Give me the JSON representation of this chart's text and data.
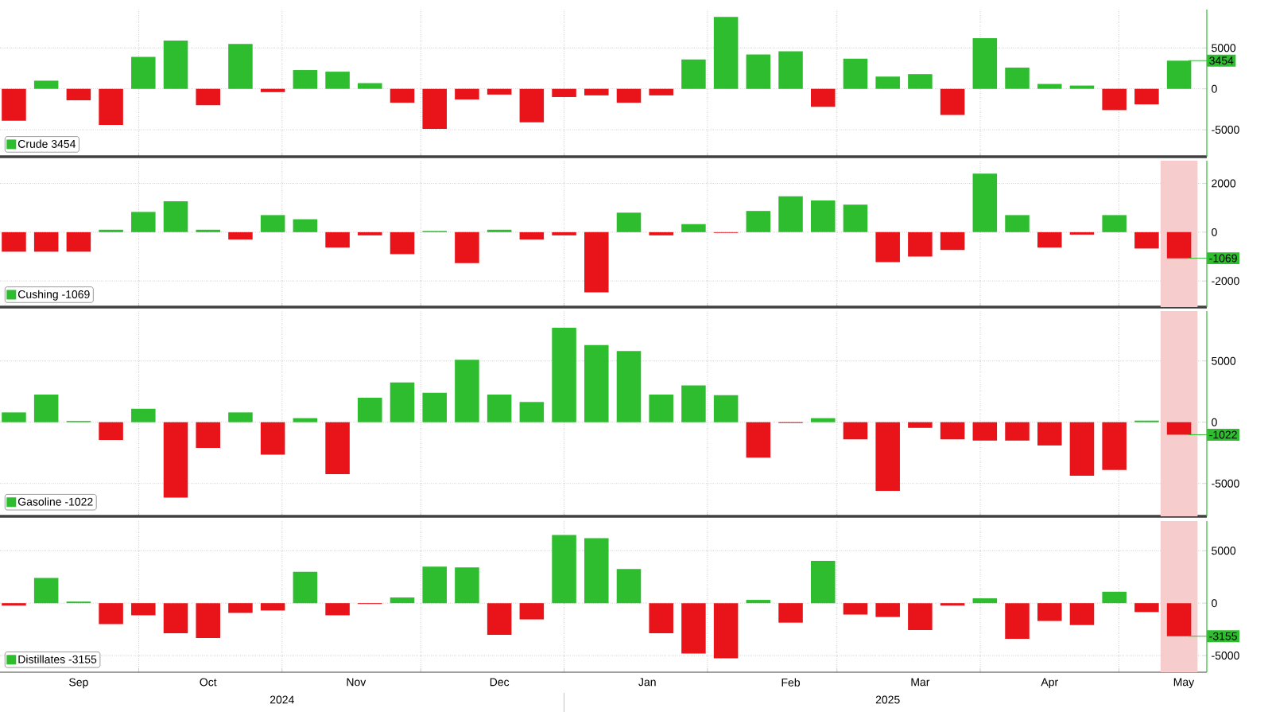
{
  "chart_data": [
    {
      "type": "bar",
      "x": [
        "2024-09-04",
        "2024-09-11",
        "2024-09-18",
        "2024-09-25",
        "2024-10-02",
        "2024-10-09",
        "2024-10-16",
        "2024-10-23",
        "2024-10-30",
        "2024-11-06",
        "2024-11-13",
        "2024-11-20",
        "2024-11-27",
        "2024-12-04",
        "2024-12-11",
        "2024-12-18",
        "2024-12-25",
        "2025-01-01",
        "2025-01-08",
        "2025-01-15",
        "2025-01-22",
        "2025-01-29",
        "2025-02-05",
        "2025-02-12",
        "2025-02-19",
        "2025-02-26",
        "2025-03-05",
        "2025-03-12",
        "2025-03-19",
        "2025-03-26",
        "2025-04-02",
        "2025-04-09",
        "2025-04-16",
        "2025-04-23",
        "2025-04-30",
        "2025-05-07",
        "2025-05-14"
      ],
      "xlim": [
        "2024-09-01",
        "2025-05-20"
      ],
      "xticks": [
        {
          "value": "2024-10-01",
          "label": null
        },
        {
          "value": "2024-11-01",
          "label": null
        },
        {
          "value": "2024-12-01",
          "label": null
        },
        {
          "value": "2025-01-01",
          "label": null
        },
        {
          "value": "2025-02-01",
          "label": null
        },
        {
          "value": "2025-03-01",
          "label": null
        },
        {
          "value": "2025-04-01",
          "label": null
        },
        {
          "value": "2025-05-01",
          "label": null
        }
      ],
      "ylim": [
        -8300,
        9700
      ],
      "yticks": [
        -5000,
        0,
        5000
      ],
      "grid": true,
      "legend": "bottom left",
      "tick_labels": "y",
      "series": [
        {
          "name": "Crude 3454",
          "color": "#2ebd2e",
          "colors": [
            "#e8141a",
            "#2ebd2e",
            "#e8141a",
            "#e8141a",
            "#2ebd2e",
            "#2ebd2e",
            "#e8141a",
            "#2ebd2e",
            "#e8141a",
            "#2ebd2e",
            "#2ebd2e",
            "#2ebd2e",
            "#e8141a",
            "#e8141a",
            "#e8141a",
            "#e8141a",
            "#e8141a",
            "#e8141a",
            "#e8141a",
            "#e8141a",
            "#e8141a",
            "#2ebd2e",
            "#2ebd2e",
            "#2ebd2e",
            "#2ebd2e",
            "#e8141a",
            "#2ebd2e",
            "#2ebd2e",
            "#2ebd2e",
            "#e8141a",
            "#2ebd2e",
            "#2ebd2e",
            "#2ebd2e",
            "#2ebd2e",
            "#e8141a",
            "#e8141a",
            "#2ebd2e"
          ],
          "values": [
            -3900,
            1000,
            -1400,
            -4400,
            3900,
            5900,
            -2000,
            5500,
            -400,
            2300,
            2100,
            700,
            -1700,
            -4900,
            -1300,
            -700,
            -4100,
            -1000,
            -800,
            -1700,
            -800,
            3600,
            8800,
            4200,
            4600,
            -2200,
            3700,
            1500,
            1800,
            -3200,
            6200,
            2600,
            600,
            400,
            -2600,
            -1900,
            3454
          ]
        }
      ],
      "annotations": [
        {
          "text": "3454",
          "x": "2025-05-14",
          "y": 3454
        }
      ]
    },
    {
      "type": "bar",
      "x": [
        "2024-09-04",
        "2024-09-11",
        "2024-09-18",
        "2024-09-25",
        "2024-10-02",
        "2024-10-09",
        "2024-10-16",
        "2024-10-23",
        "2024-10-30",
        "2024-11-06",
        "2024-11-13",
        "2024-11-20",
        "2024-11-27",
        "2024-12-04",
        "2024-12-11",
        "2024-12-18",
        "2024-12-25",
        "2025-01-01",
        "2025-01-08",
        "2025-01-15",
        "2025-01-22",
        "2025-01-29",
        "2025-02-05",
        "2025-02-12",
        "2025-02-19",
        "2025-02-26",
        "2025-03-05",
        "2025-03-12",
        "2025-03-19",
        "2025-03-26",
        "2025-04-02",
        "2025-04-09",
        "2025-04-16",
        "2025-04-23",
        "2025-04-30",
        "2025-05-07",
        "2025-05-14"
      ],
      "xlim": [
        "2024-09-01",
        "2025-05-20"
      ],
      "xticks": [
        {
          "value": "2024-10-01",
          "label": null
        },
        {
          "value": "2024-11-01",
          "label": null
        },
        {
          "value": "2024-12-01",
          "label": null
        },
        {
          "value": "2025-01-01",
          "label": null
        },
        {
          "value": "2025-02-01",
          "label": null
        },
        {
          "value": "2025-03-01",
          "label": null
        },
        {
          "value": "2025-04-01",
          "label": null
        },
        {
          "value": "2025-05-01",
          "label": null
        }
      ],
      "ylim": [
        -3070,
        2930
      ],
      "yticks": [
        -2000,
        0,
        2000
      ],
      "grid": true,
      "legend": "bottom left",
      "tick_labels": "y",
      "bands": [
        {
          "axis": "x",
          "from": "2025-05-10",
          "to": "2025-05-18",
          "color": "#f6cccc"
        }
      ],
      "series": [
        {
          "name": "Cushing -1069",
          "color": "#2ebd2e",
          "colors": [
            "#e8141a",
            "#e8141a",
            "#e8141a",
            "#2ebd2e",
            "#2ebd2e",
            "#2ebd2e",
            "#2ebd2e",
            "#e8141a",
            "#2ebd2e",
            "#2ebd2e",
            "#e8141a",
            "#e8141a",
            "#e8141a",
            "#2ebd2e",
            "#e8141a",
            "#2ebd2e",
            "#e8141a",
            "#e8141a",
            "#e8141a",
            "#2ebd2e",
            "#e8141a",
            "#2ebd2e",
            "#e8141a",
            "#2ebd2e",
            "#2ebd2e",
            "#2ebd2e",
            "#2ebd2e",
            "#e8141a",
            "#e8141a",
            "#e8141a",
            "#2ebd2e",
            "#2ebd2e",
            "#e8141a",
            "#e8141a",
            "#2ebd2e",
            "#e8141a",
            "#e8141a"
          ],
          "values": [
            -800,
            -800,
            -800,
            100,
            830,
            1270,
            100,
            -300,
            700,
            530,
            -630,
            -130,
            -900,
            50,
            -1270,
            100,
            -300,
            -130,
            -2470,
            800,
            -130,
            330,
            -30,
            870,
            1470,
            1300,
            1130,
            -1230,
            -1000,
            -730,
            2400,
            700,
            -630,
            -100,
            700,
            -670,
            -1069
          ]
        }
      ],
      "annotations": [
        {
          "text": "-1069",
          "x": "2025-05-14",
          "y": -1069
        }
      ]
    },
    {
      "type": "bar",
      "x": [
        "2024-09-04",
        "2024-09-11",
        "2024-09-18",
        "2024-09-25",
        "2024-10-02",
        "2024-10-09",
        "2024-10-16",
        "2024-10-23",
        "2024-10-30",
        "2024-11-06",
        "2024-11-13",
        "2024-11-20",
        "2024-11-27",
        "2024-12-04",
        "2024-12-11",
        "2024-12-18",
        "2024-12-25",
        "2025-01-01",
        "2025-01-08",
        "2025-01-15",
        "2025-01-22",
        "2025-01-29",
        "2025-02-05",
        "2025-02-12",
        "2025-02-19",
        "2025-02-26",
        "2025-03-05",
        "2025-03-12",
        "2025-03-19",
        "2025-03-26",
        "2025-04-02",
        "2025-04-09",
        "2025-04-16",
        "2025-04-23",
        "2025-04-30",
        "2025-05-07",
        "2025-05-14"
      ],
      "xlim": [
        "2024-09-01",
        "2025-05-20"
      ],
      "xticks": [
        {
          "value": "2024-10-01",
          "label": null
        },
        {
          "value": "2024-11-01",
          "label": null
        },
        {
          "value": "2024-12-01",
          "label": null
        },
        {
          "value": "2025-01-01",
          "label": null
        },
        {
          "value": "2025-02-01",
          "label": null
        },
        {
          "value": "2025-03-01",
          "label": null
        },
        {
          "value": "2025-04-01",
          "label": null
        },
        {
          "value": "2025-05-01",
          "label": null
        }
      ],
      "ylim": [
        -7680,
        9070
      ],
      "yticks": [
        -5000,
        0,
        5000
      ],
      "grid": true,
      "legend": "bottom left",
      "tick_labels": "y",
      "bands": [
        {
          "axis": "x",
          "from": "2025-05-10",
          "to": "2025-05-18",
          "color": "#f6cccc"
        }
      ],
      "series": [
        {
          "name": "Gasoline -1022",
          "color": "#2ebd2e",
          "colors": [
            "#2ebd2e",
            "#2ebd2e",
            "#2ebd2e",
            "#e8141a",
            "#2ebd2e",
            "#e8141a",
            "#e8141a",
            "#2ebd2e",
            "#e8141a",
            "#2ebd2e",
            "#e8141a",
            "#2ebd2e",
            "#2ebd2e",
            "#2ebd2e",
            "#2ebd2e",
            "#2ebd2e",
            "#2ebd2e",
            "#2ebd2e",
            "#2ebd2e",
            "#2ebd2e",
            "#2ebd2e",
            "#2ebd2e",
            "#2ebd2e",
            "#e8141a",
            "#e8141a",
            "#2ebd2e",
            "#e8141a",
            "#e8141a",
            "#e8141a",
            "#e8141a",
            "#e8141a",
            "#e8141a",
            "#e8141a",
            "#e8141a",
            "#e8141a",
            "#2ebd2e",
            "#e8141a"
          ],
          "values": [
            800,
            2250,
            100,
            -1450,
            1100,
            -6150,
            -2100,
            800,
            -2650,
            330,
            -4240,
            2000,
            3250,
            2400,
            5100,
            2250,
            1650,
            7700,
            6300,
            5800,
            2250,
            3000,
            2200,
            -2900,
            -70,
            330,
            -1400,
            -5600,
            -460,
            -1400,
            -1500,
            -1500,
            -1900,
            -4370,
            -3900,
            130,
            -1022
          ]
        }
      ],
      "annotations": [
        {
          "text": "-1022",
          "x": "2025-05-14",
          "y": -1022
        }
      ]
    },
    {
      "type": "bar",
      "x": [
        "2024-09-04",
        "2024-09-11",
        "2024-09-18",
        "2024-09-25",
        "2024-10-02",
        "2024-10-09",
        "2024-10-16",
        "2024-10-23",
        "2024-10-30",
        "2024-11-06",
        "2024-11-13",
        "2024-11-20",
        "2024-11-27",
        "2024-12-04",
        "2024-12-11",
        "2024-12-18",
        "2024-12-25",
        "2025-01-01",
        "2025-01-08",
        "2025-01-15",
        "2025-01-22",
        "2025-01-29",
        "2025-02-05",
        "2025-02-12",
        "2025-02-19",
        "2025-02-26",
        "2025-03-05",
        "2025-03-12",
        "2025-03-19",
        "2025-03-26",
        "2025-04-02",
        "2025-04-09",
        "2025-04-16",
        "2025-04-23",
        "2025-04-30",
        "2025-05-07",
        "2025-05-14"
      ],
      "xlim": [
        "2024-09-01",
        "2025-05-20"
      ],
      "xticks": [
        {
          "value": "2024-09-18",
          "label": "Sep"
        },
        {
          "value": "2024-10-01",
          "label": null
        },
        {
          "value": "2024-10-16",
          "label": "Oct"
        },
        {
          "value": "2024-11-01",
          "label": null
        },
        {
          "value": "2024-11-17",
          "label": "Nov"
        },
        {
          "value": "2024-12-01",
          "label": null
        },
        {
          "value": "2024-12-18",
          "label": "Dec"
        },
        {
          "value": "2025-01-01",
          "label": null
        },
        {
          "value": "2025-01-19",
          "label": "Jan"
        },
        {
          "value": "2025-02-01",
          "label": null
        },
        {
          "value": "2025-02-19",
          "label": "Feb"
        },
        {
          "value": "2025-03-01",
          "label": null
        },
        {
          "value": "2025-03-19",
          "label": "Mar"
        },
        {
          "value": "2025-04-01",
          "label": null
        },
        {
          "value": "2025-04-16",
          "label": "Apr"
        },
        {
          "value": "2025-05-01",
          "label": null
        },
        {
          "value": "2025-05-15",
          "label": "May"
        }
      ],
      "x2lim": [
        "2024-09-01",
        "2025-05-20"
      ],
      "x2ticks": [
        {
          "value": "2024-11-01",
          "label": "2024"
        },
        {
          "value": "2025-01-01",
          "label": null
        },
        {
          "value": "2025-03-12",
          "label": "2025"
        }
      ],
      "ylim": [
        -6590,
        7830
      ],
      "yticks": [
        -5000,
        0,
        5000
      ],
      "grid": true,
      "legend": "bottom left",
      "bands": [
        {
          "axis": "x",
          "from": "2025-05-10",
          "to": "2025-05-18",
          "color": "#f6cccc"
        }
      ],
      "series": [
        {
          "name": "Distillates -3155",
          "color": "#2ebd2e",
          "colors": [
            "#e8141a",
            "#2ebd2e",
            "#2ebd2e",
            "#e8141a",
            "#e8141a",
            "#e8141a",
            "#e8141a",
            "#e8141a",
            "#e8141a",
            "#2ebd2e",
            "#e8141a",
            "#e8141a",
            "#2ebd2e",
            "#2ebd2e",
            "#2ebd2e",
            "#e8141a",
            "#e8141a",
            "#2ebd2e",
            "#2ebd2e",
            "#2ebd2e",
            "#e8141a",
            "#e8141a",
            "#e8141a",
            "#2ebd2e",
            "#e8141a",
            "#2ebd2e",
            "#e8141a",
            "#e8141a",
            "#e8141a",
            "#e8141a",
            "#2ebd2e",
            "#e8141a",
            "#e8141a",
            "#e8141a",
            "#2ebd2e",
            "#e8141a",
            "#e8141a"
          ],
          "values": [
            -230,
            2400,
            150,
            -2000,
            -1160,
            -2870,
            -3330,
            -930,
            -700,
            3000,
            -1160,
            -80,
            540,
            3490,
            3410,
            -3020,
            -1550,
            6500,
            6200,
            3250,
            -2870,
            -4800,
            -5270,
            310,
            -1860,
            4030,
            -1090,
            -1320,
            -2560,
            -230,
            460,
            -3410,
            -1700,
            -2090,
            1090,
            -850,
            -3155
          ]
        }
      ],
      "annotations": [
        {
          "text": "-3155",
          "x": "2025-05-14",
          "y": -3155
        }
      ]
    }
  ]
}
